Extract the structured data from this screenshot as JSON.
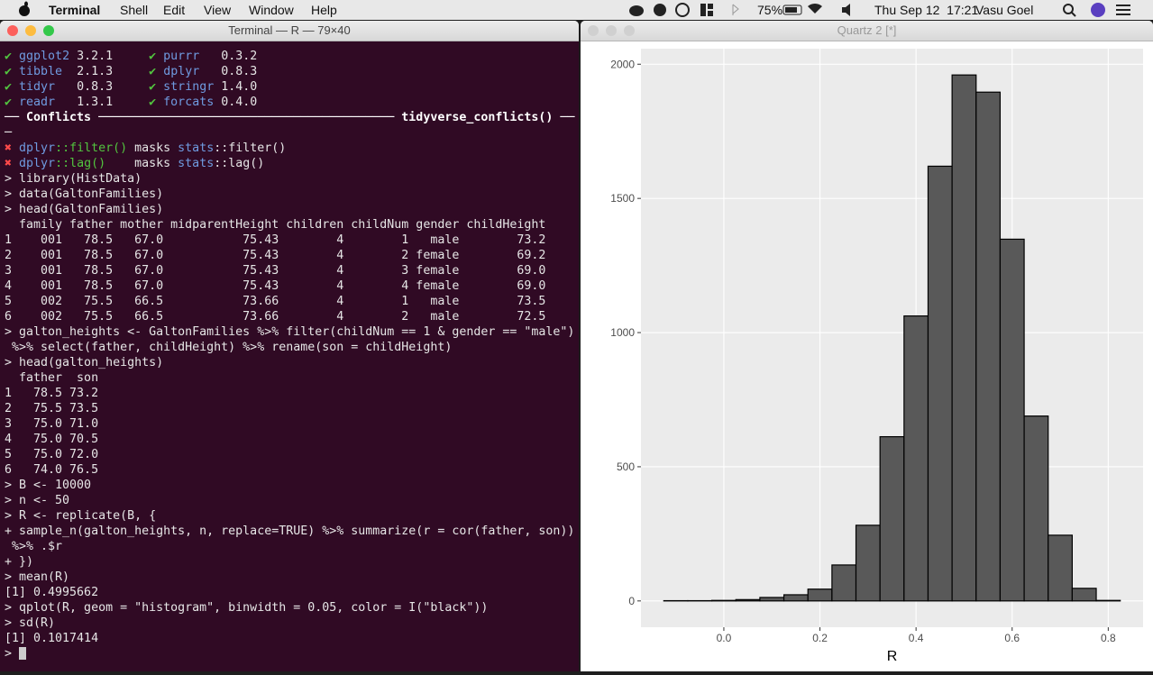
{
  "menubar": {
    "app": "Terminal",
    "menus": [
      "Shell",
      "Edit",
      "View",
      "Window",
      "Help"
    ],
    "battery": "75%",
    "clock": "Thu Sep 12  17:21",
    "user": "Vasu Goel"
  },
  "terminal": {
    "title": "Terminal — R — 79×40",
    "lines": [
      [
        {
          "text": "✔",
          "color": "#52c43f"
        },
        " ",
        {
          "text": "ggplot2",
          "color": "#6f9be0"
        },
        " 3.2.1     ",
        {
          "text": "✔",
          "color": "#52c43f"
        },
        " ",
        {
          "text": "purrr",
          "color": "#6f9be0"
        },
        "   0.3.2"
      ],
      [
        {
          "text": "✔",
          "color": "#52c43f"
        },
        " ",
        {
          "text": "tibble",
          "color": "#6f9be0"
        },
        "  2.1.3     ",
        {
          "text": "✔",
          "color": "#52c43f"
        },
        " ",
        {
          "text": "dplyr",
          "color": "#6f9be0"
        },
        "   0.8.3"
      ],
      [
        {
          "text": "✔",
          "color": "#52c43f"
        },
        " ",
        {
          "text": "tidyr",
          "color": "#6f9be0"
        },
        "   0.8.3     ",
        {
          "text": "✔",
          "color": "#52c43f"
        },
        " ",
        {
          "text": "stringr",
          "color": "#6f9be0"
        },
        " 1.4.0"
      ],
      [
        {
          "text": "✔",
          "color": "#52c43f"
        },
        " ",
        {
          "text": "readr",
          "color": "#6f9be0"
        },
        "   1.3.1     ",
        {
          "text": "✔",
          "color": "#52c43f"
        },
        " ",
        {
          "text": "forcats",
          "color": "#6f9be0"
        },
        " 0.4.0"
      ],
      [
        {
          "text": "── Conflicts ───────────────────────────────────────── tidyverse_conflicts() ──",
          "color": "#ffffff",
          "weight": "bold"
        }
      ],
      [
        "─"
      ],
      [
        {
          "text": "✖",
          "color": "#ff4a4a"
        },
        " ",
        {
          "text": "dplyr",
          "color": "#6f9be0"
        },
        {
          "text": "::filter()",
          "color": "#52c43f"
        },
        " masks ",
        {
          "text": "stats",
          "color": "#6f9be0"
        },
        "::filter()"
      ],
      [
        {
          "text": "✖",
          "color": "#ff4a4a"
        },
        " ",
        {
          "text": "dplyr",
          "color": "#6f9be0"
        },
        {
          "text": "::lag()",
          "color": "#52c43f"
        },
        "    masks ",
        {
          "text": "stats",
          "color": "#6f9be0"
        },
        "::lag()"
      ],
      [
        "> library(HistData)"
      ],
      [
        "> data(GaltonFamilies)"
      ],
      [
        "> head(GaltonFamilies)"
      ],
      [
        "  family father mother midparentHeight children childNum gender childHeight"
      ],
      [
        "1    001   78.5   67.0           75.43        4        1   male        73.2"
      ],
      [
        "2    001   78.5   67.0           75.43        4        2 female        69.2"
      ],
      [
        "3    001   78.5   67.0           75.43        4        3 female        69.0"
      ],
      [
        "4    001   78.5   67.0           75.43        4        4 female        69.0"
      ],
      [
        "5    002   75.5   66.5           73.66        4        1   male        73.5"
      ],
      [
        "6    002   75.5   66.5           73.66        4        2   male        72.5"
      ],
      [
        "> galton_heights <- GaltonFamilies %>% filter(childNum == 1 & gender == \"male\")"
      ],
      [
        " %>% select(father, childHeight) %>% rename(son = childHeight)"
      ],
      [
        "> head(galton_heights)"
      ],
      [
        "  father  son"
      ],
      [
        "1   78.5 73.2"
      ],
      [
        "2   75.5 73.5"
      ],
      [
        "3   75.0 71.0"
      ],
      [
        "4   75.0 70.5"
      ],
      [
        "5   75.0 72.0"
      ],
      [
        "6   74.0 76.5"
      ],
      [
        "> B <- 10000"
      ],
      [
        "> n <- 50"
      ],
      [
        "> R <- replicate(B, {"
      ],
      [
        "+ sample_n(galton_heights, n, replace=TRUE) %>% summarize(r = cor(father, son))"
      ],
      [
        " %>% .$r"
      ],
      [
        "+ })"
      ],
      [
        "> mean(R)"
      ],
      [
        "[1] 0.4995662"
      ],
      [
        "> qplot(R, geom = \"histogram\", binwidth = 0.05, color = I(\"black\"))"
      ],
      [
        "> sd(R)"
      ],
      [
        "[1] 0.1017414"
      ],
      [
        "> "
      ]
    ]
  },
  "plot_window": {
    "title": "Quartz 2 [*]"
  },
  "chart_data": {
    "type": "histogram",
    "xlabel": "R",
    "bins": [
      -0.125,
      -0.075,
      -0.025,
      0.025,
      0.075,
      0.125,
      0.175,
      0.225,
      0.275,
      0.325,
      0.375,
      0.425,
      0.475,
      0.525,
      0.575,
      0.625,
      0.675,
      0.725,
      0.775,
      0.825
    ],
    "values": [
      1,
      1,
      2,
      5,
      13,
      23,
      44,
      134,
      282,
      612,
      1062,
      1620,
      1960,
      1896,
      1348,
      689,
      245,
      47,
      2
    ],
    "color": "#595959",
    "edgecolor": "#000000",
    "xlim": [
      -0.1725,
      0.8725
    ],
    "xticks": [
      {
        "value": 0,
        "label": "0.0"
      },
      0.2,
      0.4,
      0.6,
      0.8
    ],
    "ylim": [
      -98,
      2058
    ],
    "yticks": [
      0,
      500,
      1000,
      1500,
      2000
    ],
    "grid": true
  }
}
